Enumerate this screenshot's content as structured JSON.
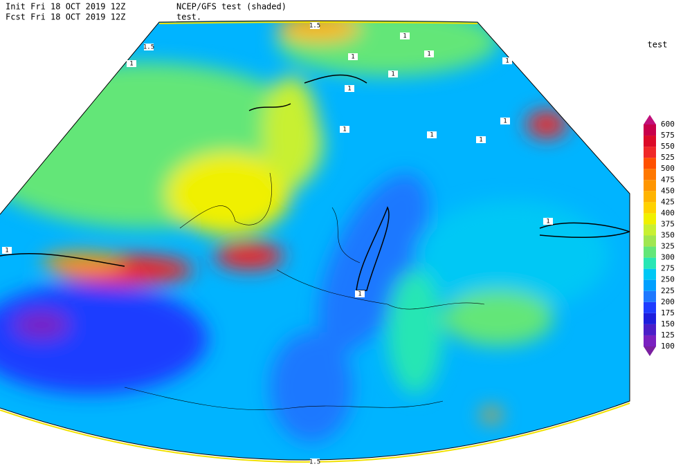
{
  "header": {
    "init": "Init  Fri 18 OCT 2019 12Z",
    "fcst": "Fcst Fri 18 OCT 2019 12Z",
    "field": "NCEP/GFS test (shaded)",
    "units": "test."
  },
  "legend": {
    "title": "test",
    "levels": [
      100,
      125,
      150,
      175,
      200,
      225,
      250,
      275,
      300,
      325,
      350,
      375,
      400,
      425,
      450,
      475,
      500,
      525,
      550,
      575,
      600
    ],
    "colors": [
      "#7a1fa0",
      "#7a20c0",
      "#4b1ec8",
      "#1e1edc",
      "#1e3cff",
      "#1e78ff",
      "#00a0ff",
      "#00c8f5",
      "#28e6b4",
      "#64e678",
      "#a0e650",
      "#c8f032",
      "#f0f000",
      "#ffd200",
      "#ffb400",
      "#ff9600",
      "#ff7800",
      "#ff5000",
      "#f02828",
      "#dc0a28",
      "#c8004a",
      "#c0107a"
    ]
  },
  "contour_labels": [
    "1.5",
    "1.5",
    "1",
    "1",
    "1",
    "1",
    "1",
    "1",
    "1",
    "1",
    "1",
    "1",
    "1",
    "1",
    "1",
    "1",
    "1.5"
  ]
}
